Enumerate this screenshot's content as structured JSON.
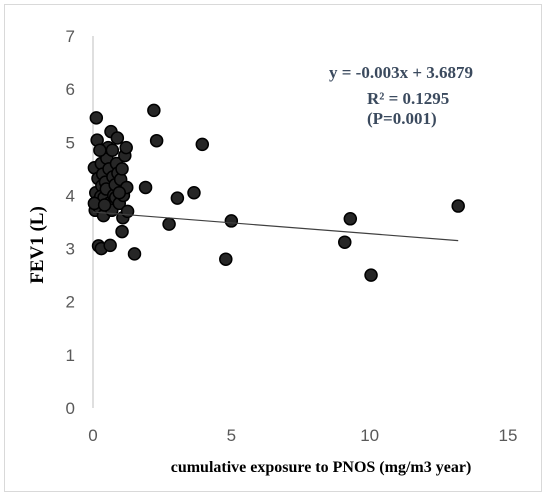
{
  "chart_data": {
    "type": "scatter",
    "xlabel": "cumulative exposure to PNOS (mg/m3 year)",
    "ylabel": "FEV1 (L)",
    "xlim": [
      0,
      15
    ],
    "ylim": [
      0,
      7
    ],
    "xticks": [
      "0",
      "5",
      "10",
      "15"
    ],
    "yticks": [
      "0",
      "1",
      "2",
      "3",
      "4",
      "5",
      "6",
      "7"
    ],
    "grid": false,
    "trendline": {
      "slope": -0.003,
      "intercept": 3.6879,
      "x_start": 0,
      "x_end": 13.2
    },
    "annotations": [
      "y = -0.003x + 3.6879",
      "R² = 0.1295",
      "(P=0.001)"
    ],
    "colors": {
      "marker_fill": "#262626",
      "marker_stroke": "#000000",
      "trendline": "#404040",
      "axis": "#bfbfbf"
    },
    "points": [
      [
        0.12,
        5.46
      ],
      [
        0.15,
        5.04
      ],
      [
        0.05,
        4.52
      ],
      [
        0.18,
        4.32
      ],
      [
        0.1,
        4.05
      ],
      [
        0.2,
        3.9
      ],
      [
        0.08,
        3.72
      ],
      [
        0.22,
        3.78
      ],
      [
        0.3,
        4.6
      ],
      [
        0.35,
        4.4
      ],
      [
        0.32,
        4.18
      ],
      [
        0.28,
        3.98
      ],
      [
        0.38,
        3.62
      ],
      [
        0.4,
        3.96
      ],
      [
        0.45,
        4.25
      ],
      [
        0.5,
        4.7
      ],
      [
        0.55,
        4.9
      ],
      [
        0.48,
        4.12
      ],
      [
        0.6,
        3.86
      ],
      [
        0.58,
        4.5
      ],
      [
        0.65,
        5.2
      ],
      [
        0.7,
        4.85
      ],
      [
        0.72,
        4.35
      ],
      [
        0.75,
        4.0
      ],
      [
        0.68,
        3.72
      ],
      [
        0.8,
        4.2
      ],
      [
        0.85,
        4.6
      ],
      [
        0.82,
        3.96
      ],
      [
        0.88,
        5.08
      ],
      [
        0.9,
        4.42
      ],
      [
        0.95,
        3.85
      ],
      [
        1.0,
        4.3
      ],
      [
        1.05,
        4.5
      ],
      [
        1.08,
        3.58
      ],
      [
        1.1,
        4.0
      ],
      [
        1.15,
        4.75
      ],
      [
        1.2,
        4.9
      ],
      [
        1.22,
        4.15
      ],
      [
        1.25,
        3.7
      ],
      [
        0.05,
        3.85
      ],
      [
        0.25,
        4.85
      ],
      [
        0.42,
        3.82
      ],
      [
        0.95,
        4.05
      ],
      [
        0.2,
        3.05
      ],
      [
        0.3,
        3.0
      ],
      [
        0.62,
        3.06
      ],
      [
        1.05,
        3.32
      ],
      [
        1.5,
        2.9
      ],
      [
        1.9,
        4.15
      ],
      [
        2.2,
        5.6
      ],
      [
        2.3,
        5.03
      ],
      [
        2.75,
        3.46
      ],
      [
        3.05,
        3.95
      ],
      [
        3.65,
        4.05
      ],
      [
        3.95,
        4.96
      ],
      [
        4.8,
        2.8
      ],
      [
        5.0,
        3.52
      ],
      [
        9.1,
        3.12
      ],
      [
        9.3,
        3.56
      ],
      [
        10.05,
        2.5
      ],
      [
        13.2,
        3.8
      ]
    ]
  }
}
